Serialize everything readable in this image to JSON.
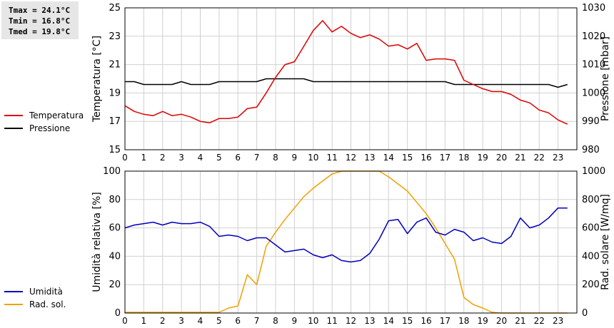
{
  "stats": {
    "tmax": "Tmax = 24.1°C",
    "tmin": "Tmin = 16.8°C",
    "tmed": "Tmed = 19.8°C"
  },
  "chart_data": [
    {
      "type": "line",
      "grid": true,
      "x_ticks": [
        "0",
        "1",
        "2",
        "3",
        "4",
        "5",
        "6",
        "7",
        "8",
        "9",
        "10",
        "11",
        "12",
        "13",
        "14",
        "15",
        "16",
        "17",
        "18",
        "19",
        "20",
        "21",
        "22",
        "23"
      ],
      "xlim": [
        0,
        24
      ],
      "y_left": {
        "label": "Temperatura [°C]",
        "lim": [
          15,
          25
        ],
        "ticks": [
          "15",
          "17",
          "19",
          "21",
          "23",
          "25"
        ]
      },
      "y_right": {
        "label": "Pressione [mbar]",
        "lim": [
          980,
          1030
        ],
        "ticks": [
          "980",
          "990",
          "1000",
          "1010",
          "1020",
          "1030"
        ]
      },
      "legend": {
        "placement": "left",
        "items": [
          {
            "name": "Temperatura",
            "color": "#dd0000"
          },
          {
            "name": "Pressione",
            "color": "#000000"
          }
        ]
      },
      "series": [
        {
          "name": "Temperatura",
          "axis": "left",
          "color": "#dd0000",
          "x": [
            0,
            0.5,
            1,
            1.5,
            2,
            2.5,
            3,
            3.5,
            4,
            4.5,
            5,
            5.5,
            6,
            6.5,
            7,
            7.5,
            8,
            8.5,
            9,
            9.5,
            10,
            10.5,
            11,
            11.5,
            12,
            12.5,
            13,
            13.5,
            14,
            14.5,
            15,
            15.5,
            16,
            16.5,
            17,
            17.5,
            18,
            18.5,
            19,
            19.5,
            20,
            20.5,
            21,
            21.5,
            22,
            22.5,
            23,
            23.5
          ],
          "y": [
            18.1,
            17.7,
            17.5,
            17.4,
            17.7,
            17.4,
            17.5,
            17.3,
            17.0,
            16.9,
            17.2,
            17.2,
            17.3,
            17.9,
            18.0,
            19.0,
            20.1,
            21.0,
            21.2,
            22.3,
            23.4,
            24.1,
            23.3,
            23.7,
            23.2,
            22.9,
            23.1,
            22.8,
            22.3,
            22.4,
            22.1,
            22.5,
            21.3,
            21.4,
            21.4,
            21.3,
            19.9,
            19.6,
            19.3,
            19.1,
            19.1,
            18.9,
            18.5,
            18.3,
            17.8,
            17.6,
            17.1,
            16.8
          ]
        },
        {
          "name": "Pressione",
          "axis": "right",
          "color": "#000000",
          "x": [
            0,
            0.5,
            1,
            1.5,
            2,
            2.5,
            3,
            3.5,
            4,
            4.5,
            5,
            5.5,
            6,
            6.5,
            7,
            7.5,
            8,
            8.5,
            9,
            9.5,
            10,
            10.5,
            11,
            11.5,
            12,
            12.5,
            13,
            13.5,
            14,
            14.5,
            15,
            15.5,
            16,
            16.5,
            17,
            17.5,
            18,
            18.5,
            19,
            19.5,
            20,
            20.5,
            21,
            21.5,
            22,
            22.5,
            23,
            23.5
          ],
          "y": [
            1004,
            1004,
            1003,
            1003,
            1003,
            1003,
            1004,
            1003,
            1003,
            1003,
            1004,
            1004,
            1004,
            1004,
            1004,
            1005,
            1005,
            1005,
            1005,
            1005,
            1004,
            1004,
            1004,
            1004,
            1004,
            1004,
            1004,
            1004,
            1004,
            1004,
            1004,
            1004,
            1004,
            1004,
            1004,
            1003,
            1003,
            1003,
            1003,
            1003,
            1003,
            1003,
            1003,
            1003,
            1003,
            1003,
            1002,
            1003
          ]
        }
      ]
    },
    {
      "type": "line",
      "grid": true,
      "x_ticks": [
        "0",
        "1",
        "2",
        "3",
        "4",
        "5",
        "6",
        "7",
        "8",
        "9",
        "10",
        "11",
        "12",
        "13",
        "14",
        "15",
        "16",
        "17",
        "18",
        "19",
        "20",
        "21",
        "22",
        "23"
      ],
      "xlim": [
        0,
        24
      ],
      "y_left": {
        "label": "Umidità relativa [%]",
        "lim": [
          0,
          100
        ],
        "ticks": [
          "0",
          "20",
          "40",
          "60",
          "80",
          "100"
        ]
      },
      "y_right": {
        "label": "Rad. solare [W/mq]",
        "lim": [
          0,
          1000
        ],
        "ticks": [
          "0",
          "200",
          "400",
          "600",
          "800",
          "1000"
        ]
      },
      "legend": {
        "placement": "left",
        "items": [
          {
            "name": "Umidità",
            "color": "#0000bb"
          },
          {
            "name": "Rad. sol.",
            "color": "#f0a000"
          }
        ]
      },
      "series": [
        {
          "name": "Umidità",
          "axis": "left",
          "color": "#0000bb",
          "x": [
            0,
            0.5,
            1,
            1.5,
            2,
            2.5,
            3,
            3.5,
            4,
            4.5,
            5,
            5.5,
            6,
            6.5,
            7,
            7.5,
            8,
            8.5,
            9,
            9.5,
            10,
            10.5,
            11,
            11.5,
            12,
            12.5,
            13,
            13.5,
            14,
            14.5,
            15,
            15.5,
            16,
            16.5,
            17,
            17.5,
            18,
            18.5,
            19,
            19.5,
            20,
            20.5,
            21,
            21.5,
            22,
            22.5,
            23,
            23.5
          ],
          "y": [
            60,
            62,
            63,
            64,
            62,
            64,
            63,
            63,
            64,
            61,
            54,
            55,
            54,
            51,
            53,
            53,
            48,
            43,
            44,
            45,
            41,
            39,
            41,
            37,
            36,
            37,
            42,
            52,
            65,
            66,
            56,
            64,
            67,
            57,
            55,
            59,
            57,
            51,
            53,
            50,
            49,
            54,
            67,
            60,
            62,
            67,
            74,
            74
          ]
        },
        {
          "name": "Rad. sol.",
          "axis": "right",
          "color": "#f0a000",
          "x": [
            0,
            0.5,
            1,
            1.5,
            2,
            2.5,
            3,
            3.5,
            4,
            4.5,
            5,
            5.5,
            6,
            6.5,
            7,
            7.5,
            8,
            8.5,
            9,
            9.5,
            10,
            10.5,
            11,
            11.5,
            12,
            12.5,
            13,
            13.5,
            14,
            14.5,
            15,
            15.5,
            16,
            16.5,
            17,
            17.5,
            18,
            18.5,
            19,
            19.5,
            20,
            20.5,
            21,
            21.5,
            22,
            22.5,
            23,
            23.5
          ],
          "y": [
            5,
            5,
            5,
            5,
            5,
            5,
            5,
            5,
            5,
            5,
            5,
            35,
            50,
            270,
            200,
            470,
            570,
            660,
            740,
            820,
            880,
            930,
            980,
            1020,
            1030,
            1030,
            1030,
            1020,
            960,
            910,
            860,
            780,
            700,
            600,
            490,
            380,
            110,
            60,
            35,
            5,
            0,
            0,
            0,
            0,
            0,
            0,
            0,
            0
          ]
        }
      ]
    }
  ]
}
